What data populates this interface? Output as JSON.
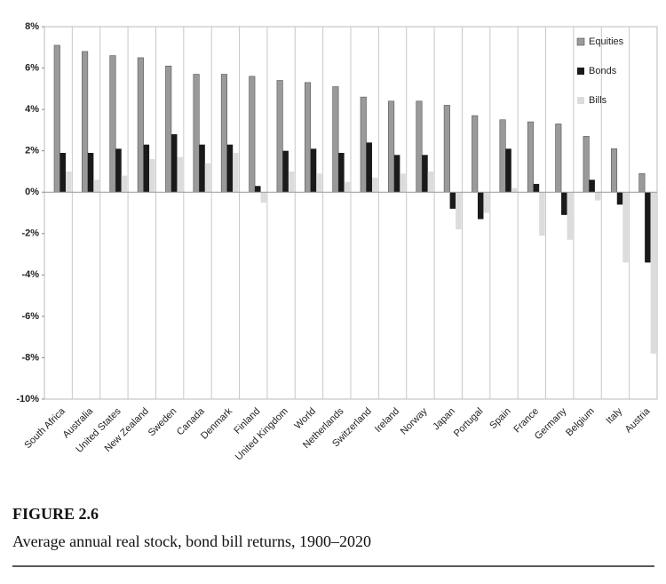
{
  "chart_data": {
    "type": "bar",
    "categories": [
      "South Africa",
      "Australia",
      "United States",
      "New Zealand",
      "Sweden",
      "Canada",
      "Denmark",
      "Finland",
      "United Kingdom",
      "World",
      "Netherlands",
      "Switzerland",
      "Ireland",
      "Norway",
      "Japan",
      "Portugal",
      "Spain",
      "France",
      "Germany",
      "Belgium",
      "Italy",
      "Austria"
    ],
    "series": [
      {
        "name": "Equities",
        "color": "#9a9a9a",
        "values": [
          7.1,
          6.8,
          6.6,
          6.5,
          6.1,
          5.7,
          5.7,
          5.6,
          5.4,
          5.3,
          5.1,
          4.6,
          4.4,
          4.4,
          4.2,
          3.7,
          3.5,
          3.4,
          3.3,
          2.7,
          2.1,
          0.9
        ]
      },
      {
        "name": "Bonds",
        "color": "#1a1a1a",
        "values": [
          1.9,
          1.9,
          2.1,
          2.3,
          2.8,
          2.3,
          2.3,
          0.3,
          2.0,
          2.1,
          1.9,
          2.4,
          1.8,
          1.8,
          -0.8,
          -1.3,
          2.1,
          0.4,
          -1.1,
          0.6,
          -0.6,
          -3.4
        ]
      },
      {
        "name": "Bills",
        "color": "#dcdcdc",
        "values": [
          1.0,
          0.6,
          0.8,
          1.6,
          1.7,
          1.4,
          1.9,
          -0.5,
          1.0,
          0.9,
          0.5,
          0.7,
          0.9,
          1.0,
          -1.8,
          -1.0,
          0.2,
          -2.1,
          -2.3,
          -0.4,
          -3.4,
          -7.8
        ]
      }
    ],
    "ylim": [
      -10,
      8
    ],
    "yticks": [
      {
        "value": -10,
        "label": "-10%"
      },
      {
        "value": -8,
        "label": "-8%"
      },
      {
        "value": -6,
        "label": "-6%"
      },
      {
        "value": -4,
        "label": "-4%"
      },
      {
        "value": -2,
        "label": "-2%"
      },
      {
        "value": 0,
        "label": "0%"
      },
      {
        "value": 2,
        "label": "2%"
      },
      {
        "value": 4,
        "label": "4%"
      },
      {
        "value": 6,
        "label": "6%"
      },
      {
        "value": 8,
        "label": "8%"
      }
    ],
    "legend": "top-right"
  },
  "figure": {
    "label": "FIGURE 2.6",
    "caption": "Average annual real stock, bond bill returns, 1900–2020"
  }
}
